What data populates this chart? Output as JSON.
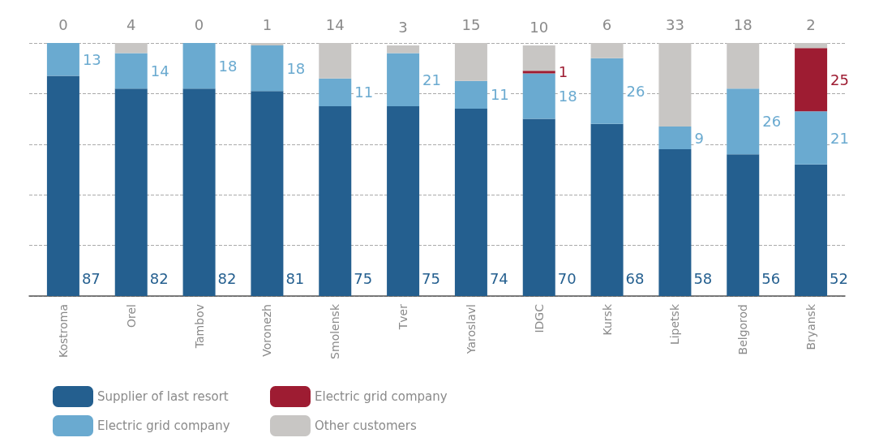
{
  "chart_data": {
    "type": "bar",
    "stacked": true,
    "data_labels": true,
    "categories": [
      "Kostroma",
      "Orel",
      "Tambov",
      "Voronezh",
      "Smolensk",
      "Tver",
      "Yaroslavl",
      "IDGC",
      "Kursk",
      "Lipetsk",
      "Belgorod",
      "Bryansk"
    ],
    "series": [
      {
        "name": "Supplier of last resort",
        "color": "#245f8f",
        "values": [
          87,
          82,
          82,
          81,
          75,
          75,
          74,
          70,
          68,
          58,
          56,
          52
        ]
      },
      {
        "name": "Electric grid company",
        "color": "#6aaad0",
        "values": [
          13,
          14,
          18,
          18,
          11,
          21,
          11,
          18,
          26,
          9,
          26,
          21
        ]
      },
      {
        "name": "Electric grid company",
        "color": "#9e1c32",
        "values": [
          null,
          null,
          null,
          null,
          null,
          null,
          null,
          1,
          null,
          null,
          null,
          25
        ]
      },
      {
        "name": "Other customers",
        "color": "#c8c6c4",
        "values": [
          0,
          4,
          0,
          1,
          14,
          3,
          15,
          10,
          6,
          33,
          18,
          2
        ]
      }
    ],
    "ylim": [
      0,
      100
    ],
    "yticks": [
      {
        "value": 0,
        "label": null
      },
      {
        "value": 20,
        "label": null
      },
      {
        "value": 40,
        "label": null
      },
      {
        "value": 60,
        "label": null
      },
      {
        "value": 80,
        "label": null
      },
      {
        "value": 100,
        "label": null
      }
    ],
    "tick_labels": "x",
    "grid": "y",
    "legend": "bottom"
  }
}
